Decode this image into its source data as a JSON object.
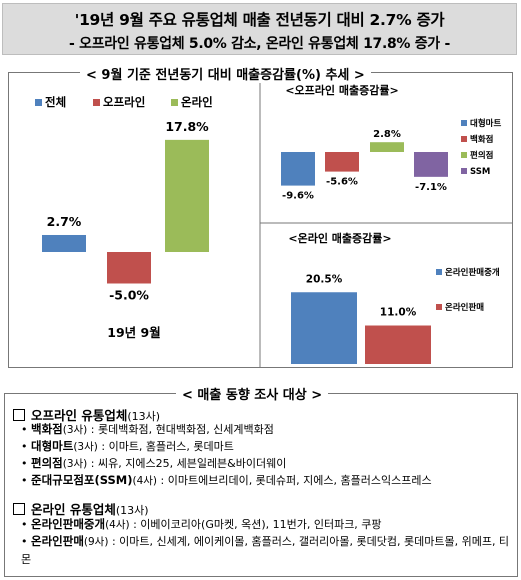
{
  "header": {
    "line1": "'19년 9월 주요 유통업체 매출 전년동기 대비 2.7% 증가",
    "line2": "- 오프라인 유통업체 5.0% 감소, 온라인 유통업체 17.8% 증가 -"
  },
  "chart_section_title": "< 9월 기준 전년동기 대비 매출증감률(%) 추세 >",
  "chart_data": [
    {
      "type": "bar",
      "categories": [
        "19년 9월"
      ],
      "series": [
        {
          "name": "전체",
          "values": [
            2.7
          ],
          "color": "#4f81bd",
          "label": "2.7%"
        },
        {
          "name": "오프라인",
          "values": [
            -5.0
          ],
          "color": "#c0504d",
          "label": "-5.0%"
        },
        {
          "name": "온라인",
          "values": [
            17.8
          ],
          "color": "#9bbb59",
          "label": "17.8%"
        }
      ],
      "xlabel": "19년 9월",
      "legend": "top",
      "grid": false
    },
    {
      "type": "bar",
      "title": "<오프라인 매출증감률>",
      "series": [
        {
          "name": "대형마트",
          "values": [
            -9.6
          ],
          "color": "#4f81bd",
          "label": "-9.6%"
        },
        {
          "name": "백화점",
          "values": [
            -5.6
          ],
          "color": "#c0504d",
          "label": "-5.6%"
        },
        {
          "name": "편의점",
          "values": [
            2.8
          ],
          "color": "#9bbb59",
          "label": "2.8%"
        },
        {
          "name": "SSM",
          "values": [
            -7.1
          ],
          "color": "#8064a2",
          "label": "-7.1%"
        }
      ],
      "legend": "right",
      "grid": false
    },
    {
      "type": "bar",
      "title": "<온라인 매출증감률>",
      "series": [
        {
          "name": "온라인판매중개",
          "values": [
            20.5
          ],
          "color": "#4f81bd",
          "label": "20.5%"
        },
        {
          "name": "온라인판매",
          "values": [
            11.0
          ],
          "color": "#c0504d",
          "label": "11.0%"
        }
      ],
      "legend": "right",
      "grid": false
    }
  ],
  "survey": {
    "title": "< 매출 동향 조사 대상 >",
    "groups": [
      {
        "name": "오프라인 유통업체",
        "count": "(13사)",
        "items": [
          {
            "name": "백화점",
            "count": "(3사)",
            "desc": " : 롯데백화점, 현대백화점, 신세계백화점"
          },
          {
            "name": "대형마트",
            "count": "(3사)",
            "desc": " : 이마트, 홈플러스, 롯데마트"
          },
          {
            "name": "편의점",
            "count": "(3사)",
            "desc": " : 씨유, 지에스25, 세븐일레븐&바이더웨이"
          },
          {
            "name": "준대규모점포(SSM)",
            "count": "(4사)",
            "desc": " : 이마트에브리데이, 롯데슈퍼, 지에스, 홈플러스익스프레스"
          }
        ]
      },
      {
        "name": "온라인 유통업체",
        "count": "(13사)",
        "items": [
          {
            "name": "온라인판매중개",
            "count": "(4사)",
            "desc": " : 이베이코리아(G마켓, 옥션), 11번가, 인터파크, 쿠팡"
          },
          {
            "name": "온라인판매",
            "count": "(9사)",
            "desc": " : 이마트, 신세계, 에이케이몰, 홈플러스, 갤러리아몰, 롯데닷컴, 롯데마트몰, 위메프, 티몬"
          }
        ]
      }
    ]
  }
}
